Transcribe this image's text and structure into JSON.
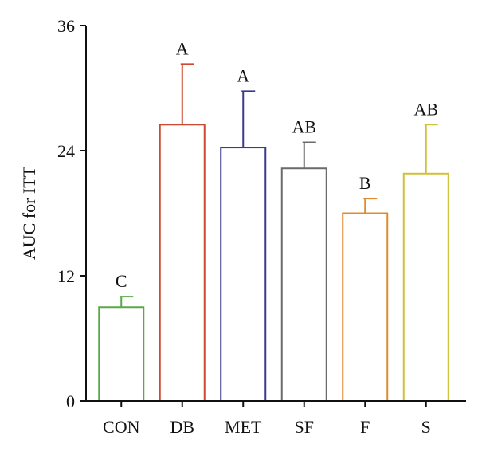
{
  "chart_data": {
    "type": "bar",
    "ylabel": "AUC for ITT",
    "xlabel": "",
    "ylim": [
      0,
      36
    ],
    "yticks": [
      "0",
      "12",
      "24",
      "36"
    ],
    "grid": false,
    "categories": [
      "CON",
      "DB",
      "MET",
      "SF",
      "F",
      "S"
    ],
    "values": [
      9.0,
      26.5,
      24.3,
      22.3,
      18.0,
      21.8
    ],
    "errors": [
      1.0,
      5.8,
      5.4,
      2.5,
      1.4,
      4.7
    ],
    "significance": [
      "C",
      "A",
      "A",
      "AB",
      "B",
      "AB"
    ],
    "colors": [
      "#5aa846",
      "#cc4a2f",
      "#3b3a8f",
      "#6b6b6b",
      "#e0892f",
      "#d0c23a"
    ]
  }
}
